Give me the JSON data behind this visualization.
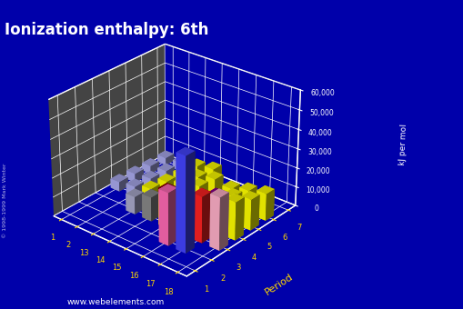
{
  "title": "Ionization enthalpy: 6th",
  "zlabel": "kJ per mol",
  "period_label": "Period",
  "bg_color": "#0000AA",
  "floor_color": "#444444",
  "title_color": "white",
  "tick_color": "white",
  "group_tick_color": "#FFD700",
  "period_tick_color": "#FFD700",
  "website": "www.webelements.com",
  "zlim": [
    0,
    60000
  ],
  "zticks": [
    0,
    10000,
    20000,
    30000,
    40000,
    50000,
    60000
  ],
  "ztick_labels": [
    "0",
    "10,000",
    "20,000",
    "30,000",
    "40,000",
    "50,000",
    "60,000"
  ],
  "groups": [
    1,
    2,
    13,
    14,
    15,
    16,
    17,
    18
  ],
  "periods": [
    1,
    2,
    3,
    4,
    5,
    6,
    7
  ],
  "bars": [
    {
      "period": 2,
      "group": 16,
      "value": 27107,
      "color": "#FF69B4"
    },
    {
      "period": 2,
      "group": 17,
      "value": 49000,
      "color": "#4444FF"
    },
    {
      "period": 3,
      "group": 13,
      "value": 9012,
      "color": "#AAAACC"
    },
    {
      "period": 3,
      "group": 14,
      "value": 12397,
      "color": "#888888"
    },
    {
      "period": 3,
      "group": 15,
      "value": 16091,
      "color": "#FFFF00"
    },
    {
      "period": 3,
      "group": 16,
      "value": 20114,
      "color": "#FFFFFF"
    },
    {
      "period": 3,
      "group": 17,
      "value": 23786,
      "color": "#FF2222"
    },
    {
      "period": 3,
      "group": 18,
      "value": 27106,
      "color": "#FFB0C8"
    },
    {
      "period": 4,
      "group": 1,
      "value": 4912,
      "color": "#AAAAEE"
    },
    {
      "period": 4,
      "group": 2,
      "value": 5877,
      "color": "#AAAAEE"
    },
    {
      "period": 4,
      "group": 13,
      "value": 8298,
      "color": "#FFFF00"
    },
    {
      "period": 4,
      "group": 14,
      "value": 10810,
      "color": "#880000"
    },
    {
      "period": 4,
      "group": 15,
      "value": 13100,
      "color": "#FF6600"
    },
    {
      "period": 4,
      "group": 16,
      "value": 13600,
      "color": "#00AA00"
    },
    {
      "period": 4,
      "group": 17,
      "value": 17083,
      "color": "#FFFF00"
    },
    {
      "period": 4,
      "group": 18,
      "value": 19680,
      "color": "#FFFF00"
    },
    {
      "period": 5,
      "group": 1,
      "value": 4570,
      "color": "#AAAAEE"
    },
    {
      "period": 5,
      "group": 2,
      "value": 5413,
      "color": "#AAAAEE"
    },
    {
      "period": 5,
      "group": 13,
      "value": 7300,
      "color": "#FFFF00"
    },
    {
      "period": 5,
      "group": 14,
      "value": 9500,
      "color": "#FFFF00"
    },
    {
      "period": 5,
      "group": 15,
      "value": 12000,
      "color": "#FFFF00"
    },
    {
      "period": 5,
      "group": 16,
      "value": 10400,
      "color": "#880088"
    },
    {
      "period": 5,
      "group": 17,
      "value": 13900,
      "color": "#FFFF00"
    },
    {
      "period": 5,
      "group": 18,
      "value": 16000,
      "color": "#FFFF00"
    },
    {
      "period": 6,
      "group": 1,
      "value": 4083,
      "color": "#AAAAEE"
    },
    {
      "period": 6,
      "group": 2,
      "value": 4800,
      "color": "#AAAAEE"
    },
    {
      "period": 6,
      "group": 13,
      "value": 6600,
      "color": "#FFFF00"
    },
    {
      "period": 6,
      "group": 14,
      "value": 8500,
      "color": "#FFFF00"
    },
    {
      "period": 6,
      "group": 15,
      "value": 10900,
      "color": "#FFFF00"
    },
    {
      "period": 6,
      "group": 16,
      "value": 9400,
      "color": "#FFFF00"
    },
    {
      "period": 6,
      "group": 17,
      "value": 12000,
      "color": "#FFFF00"
    },
    {
      "period": 6,
      "group": 18,
      "value": 14000,
      "color": "#FFFF00"
    },
    {
      "period": 7,
      "group": 1,
      "value": 3800,
      "color": "#AAAAEE"
    },
    {
      "period": 7,
      "group": 2,
      "value": 4400,
      "color": "#AAAAEE"
    },
    {
      "period": 7,
      "group": 13,
      "value": 6100,
      "color": "#FFFF00"
    },
    {
      "period": 7,
      "group": 14,
      "value": 7900,
      "color": "#FFFF00"
    }
  ],
  "elev": 28,
  "azim": -50
}
